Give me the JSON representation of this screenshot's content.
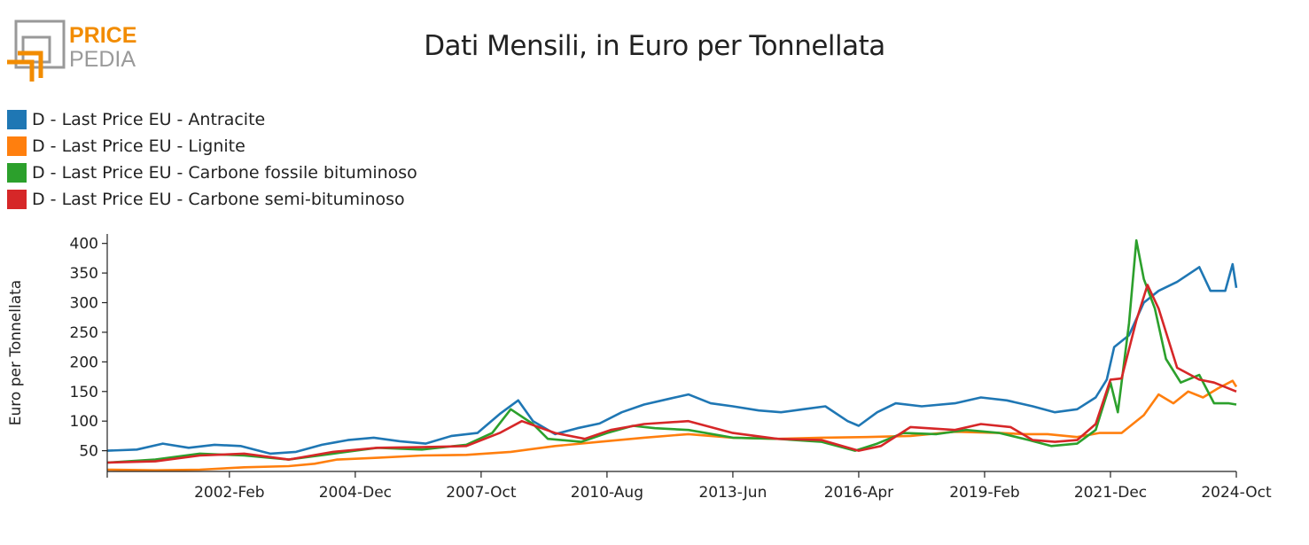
{
  "brand": {
    "line1": "PRICE",
    "line2": "PEDIA"
  },
  "chart_data": {
    "type": "line",
    "title": "Dati Mensili, in Euro per Tonnellata",
    "ylabel": "Euro per Tonnellata",
    "xlabel": "",
    "ylim": [
      15,
      410
    ],
    "yticks": [
      50,
      100,
      150,
      200,
      250,
      300,
      350,
      400
    ],
    "xlim": [
      "1999-05",
      "2024-10"
    ],
    "xticks": [
      "2002-Feb",
      "2004-Dec",
      "2007-Oct",
      "2010-Aug",
      "2013-Jun",
      "2016-Apr",
      "2019-Feb",
      "2021-Dec",
      "2024-Oct"
    ],
    "legend_position": "top-left",
    "grid": false,
    "series": [
      {
        "name": "D - Last Price EU - Antracite",
        "color": "#1f77b4",
        "points": [
          [
            "1999-05",
            50
          ],
          [
            "2000-01",
            52
          ],
          [
            "2000-08",
            62
          ],
          [
            "2001-03",
            55
          ],
          [
            "2001-10",
            60
          ],
          [
            "2002-05",
            58
          ],
          [
            "2003-01",
            45
          ],
          [
            "2003-08",
            48
          ],
          [
            "2004-03",
            60
          ],
          [
            "2004-10",
            68
          ],
          [
            "2005-05",
            72
          ],
          [
            "2005-12",
            66
          ],
          [
            "2006-07",
            62
          ],
          [
            "2007-02",
            75
          ],
          [
            "2007-09",
            80
          ],
          [
            "2008-03",
            112
          ],
          [
            "2008-08",
            135
          ],
          [
            "2008-12",
            100
          ],
          [
            "2009-06",
            78
          ],
          [
            "2009-12",
            88
          ],
          [
            "2010-06",
            96
          ],
          [
            "2010-12",
            115
          ],
          [
            "2011-06",
            128
          ],
          [
            "2012-01",
            138
          ],
          [
            "2012-06",
            145
          ],
          [
            "2012-12",
            130
          ],
          [
            "2013-06",
            125
          ],
          [
            "2014-01",
            118
          ],
          [
            "2014-07",
            115
          ],
          [
            "2015-01",
            120
          ],
          [
            "2015-07",
            125
          ],
          [
            "2016-01",
            100
          ],
          [
            "2016-04",
            92
          ],
          [
            "2016-09",
            115
          ],
          [
            "2017-02",
            130
          ],
          [
            "2017-09",
            125
          ],
          [
            "2018-06",
            130
          ],
          [
            "2019-01",
            140
          ],
          [
            "2019-08",
            135
          ],
          [
            "2020-03",
            125
          ],
          [
            "2020-09",
            115
          ],
          [
            "2021-03",
            120
          ],
          [
            "2021-08",
            140
          ],
          [
            "2021-11",
            170
          ],
          [
            "2022-01",
            225
          ],
          [
            "2022-05",
            245
          ],
          [
            "2022-09",
            300
          ],
          [
            "2023-01",
            320
          ],
          [
            "2023-06",
            335
          ],
          [
            "2023-12",
            360
          ],
          [
            "2024-03",
            320
          ],
          [
            "2024-07",
            320
          ],
          [
            "2024-09",
            365
          ],
          [
            "2024-10",
            325
          ]
        ]
      },
      {
        "name": "D - Last Price EU - Lignite",
        "color": "#ff7f0e",
        "points": [
          [
            "1999-05",
            18
          ],
          [
            "2000-06",
            17
          ],
          [
            "2001-06",
            18
          ],
          [
            "2002-06",
            22
          ],
          [
            "2003-06",
            24
          ],
          [
            "2004-01",
            28
          ],
          [
            "2004-07",
            35
          ],
          [
            "2005-06",
            38
          ],
          [
            "2006-06",
            42
          ],
          [
            "2007-06",
            43
          ],
          [
            "2008-06",
            48
          ],
          [
            "2009-06",
            58
          ],
          [
            "2010-06",
            65
          ],
          [
            "2011-06",
            72
          ],
          [
            "2012-06",
            78
          ],
          [
            "2013-06",
            72
          ],
          [
            "2014-06",
            70
          ],
          [
            "2015-06",
            72
          ],
          [
            "2016-06",
            73
          ],
          [
            "2017-06",
            75
          ],
          [
            "2018-06",
            82
          ],
          [
            "2019-06",
            80
          ],
          [
            "2020-01",
            78
          ],
          [
            "2020-07",
            78
          ],
          [
            "2021-03",
            73
          ],
          [
            "2021-09",
            80
          ],
          [
            "2022-03",
            80
          ],
          [
            "2022-09",
            110
          ],
          [
            "2023-01",
            145
          ],
          [
            "2023-05",
            130
          ],
          [
            "2023-09",
            150
          ],
          [
            "2024-01",
            140
          ],
          [
            "2024-05",
            155
          ],
          [
            "2024-09",
            168
          ],
          [
            "2024-10",
            158
          ]
        ]
      },
      {
        "name": "D - Last Price EU - Carbone fossile bituminoso",
        "color": "#2ca02c",
        "points": [
          [
            "1999-05",
            30
          ],
          [
            "2000-06",
            35
          ],
          [
            "2001-06",
            45
          ],
          [
            "2002-06",
            42
          ],
          [
            "2003-06",
            35
          ],
          [
            "2004-06",
            45
          ],
          [
            "2005-06",
            55
          ],
          [
            "2006-06",
            52
          ],
          [
            "2007-06",
            60
          ],
          [
            "2008-01",
            80
          ],
          [
            "2008-06",
            120
          ],
          [
            "2008-12",
            95
          ],
          [
            "2009-04",
            70
          ],
          [
            "2010-01",
            65
          ],
          [
            "2010-08",
            80
          ],
          [
            "2011-03",
            92
          ],
          [
            "2011-09",
            88
          ],
          [
            "2012-06",
            85
          ],
          [
            "2013-06",
            72
          ],
          [
            "2014-06",
            70
          ],
          [
            "2015-06",
            65
          ],
          [
            "2016-03",
            50
          ],
          [
            "2016-09",
            62
          ],
          [
            "2017-04",
            80
          ],
          [
            "2018-01",
            78
          ],
          [
            "2018-09",
            85
          ],
          [
            "2019-06",
            80
          ],
          [
            "2020-02",
            68
          ],
          [
            "2020-08",
            58
          ],
          [
            "2021-03",
            62
          ],
          [
            "2021-08",
            85
          ],
          [
            "2021-12",
            165
          ],
          [
            "2022-02",
            115
          ],
          [
            "2022-05",
            265
          ],
          [
            "2022-07",
            405
          ],
          [
            "2022-09",
            340
          ],
          [
            "2022-12",
            290
          ],
          [
            "2023-03",
            205
          ],
          [
            "2023-07",
            165
          ],
          [
            "2023-12",
            178
          ],
          [
            "2024-04",
            130
          ],
          [
            "2024-08",
            130
          ],
          [
            "2024-10",
            128
          ]
        ]
      },
      {
        "name": "D - Last Price EU - Carbone semi-bituminoso",
        "color": "#d62728",
        "points": [
          [
            "1999-05",
            30
          ],
          [
            "2000-06",
            32
          ],
          [
            "2001-06",
            42
          ],
          [
            "2002-06",
            45
          ],
          [
            "2003-06",
            35
          ],
          [
            "2004-06",
            48
          ],
          [
            "2005-06",
            55
          ],
          [
            "2006-06",
            56
          ],
          [
            "2007-06",
            58
          ],
          [
            "2008-03",
            80
          ],
          [
            "2008-09",
            100
          ],
          [
            "2009-06",
            80
          ],
          [
            "2010-02",
            70
          ],
          [
            "2010-09",
            85
          ],
          [
            "2011-06",
            95
          ],
          [
            "2012-06",
            100
          ],
          [
            "2013-06",
            80
          ],
          [
            "2014-06",
            70
          ],
          [
            "2015-06",
            68
          ],
          [
            "2016-04",
            50
          ],
          [
            "2016-10",
            58
          ],
          [
            "2017-06",
            90
          ],
          [
            "2018-06",
            85
          ],
          [
            "2019-01",
            95
          ],
          [
            "2019-09",
            90
          ],
          [
            "2020-03",
            68
          ],
          [
            "2020-09",
            65
          ],
          [
            "2021-03",
            68
          ],
          [
            "2021-08",
            95
          ],
          [
            "2021-12",
            170
          ],
          [
            "2022-03",
            172
          ],
          [
            "2022-07",
            270
          ],
          [
            "2022-10",
            330
          ],
          [
            "2023-01",
            290
          ],
          [
            "2023-06",
            190
          ],
          [
            "2023-12",
            170
          ],
          [
            "2024-04",
            165
          ],
          [
            "2024-10",
            150
          ]
        ]
      }
    ]
  }
}
